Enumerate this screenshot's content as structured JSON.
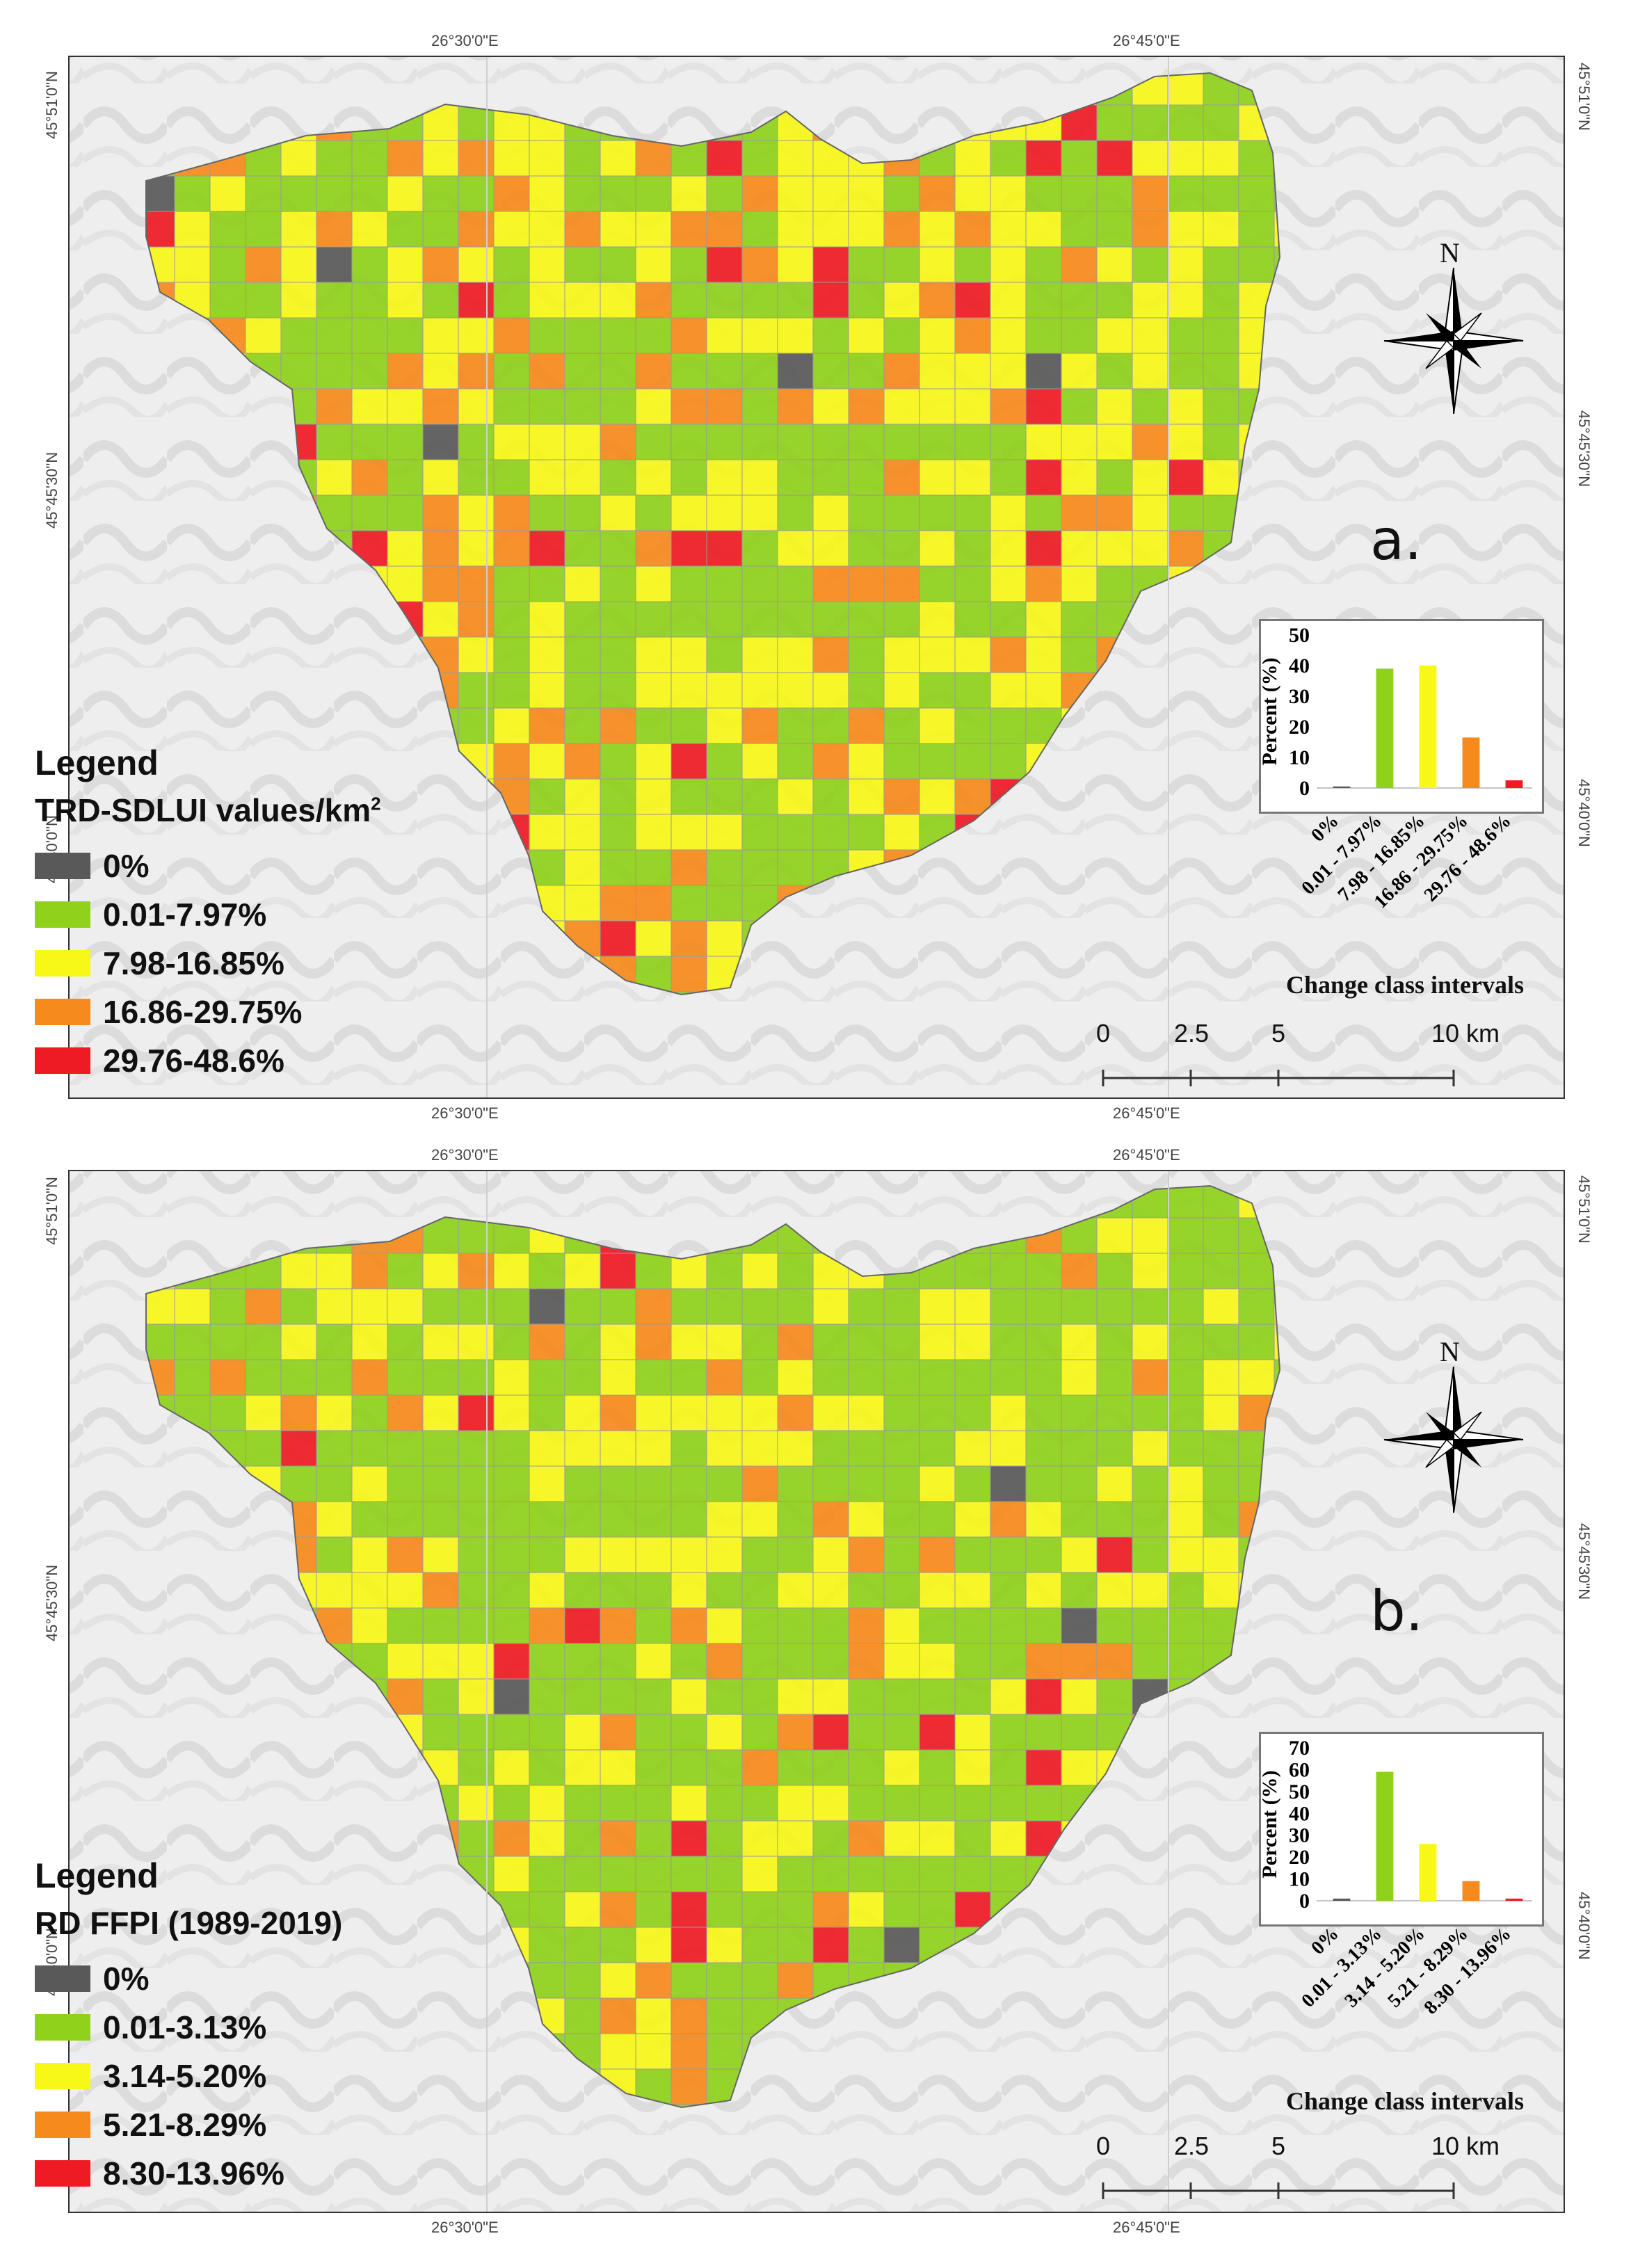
{
  "coordinates": {
    "top": [
      "26°30'0\"E",
      "26°45'0\"E"
    ],
    "bottom": [
      "26°30'0\"E",
      "26°45'0\"E"
    ],
    "left": [
      "45°51'0\"N",
      "45°45'30\"N",
      "45°40'0\"N"
    ],
    "right": [
      "45°51'0\"N",
      "45°45'30\"N",
      "45°40'0\"N"
    ]
  },
  "north_label": "N",
  "scale_bar": {
    "labels": [
      "0",
      "2.5",
      "5",
      "10 km"
    ]
  },
  "panels": [
    {
      "id": "a",
      "panel_label": "a.",
      "legend": {
        "title": "Legend",
        "subtitle": "TRD-SDLUI values/km",
        "subtitle_sup": "2",
        "items": [
          {
            "label": "0%",
            "color": "#595959"
          },
          {
            "label": "0.01-7.97%",
            "color": "#8fd11b"
          },
          {
            "label": "7.98-16.85%",
            "color": "#f7f718"
          },
          {
            "label": "16.86-29.75%",
            "color": "#f78a1c"
          },
          {
            "label": "29.76-48.6%",
            "color": "#ee1b24"
          }
        ]
      },
      "chart_data": {
        "type": "bar",
        "ylabel": "Percent (%)",
        "xlabel": "Change class intervals",
        "ylim": [
          0,
          50
        ],
        "yticks": [
          0,
          10,
          20,
          30,
          40,
          50
        ],
        "categories": [
          "0%",
          "0.01 - 7.97%",
          "7.98 - 16.85%",
          "16.86 - 29.75%",
          "29.76 - 48.6%"
        ],
        "values": [
          0.5,
          39,
          40,
          16.5,
          2.5
        ],
        "colors": [
          "#595959",
          "#8fd11b",
          "#f7f718",
          "#f78a1c",
          "#ee1b24"
        ]
      }
    },
    {
      "id": "b",
      "panel_label": "b.",
      "legend": {
        "title": "Legend",
        "subtitle": "RD FFPI (1989-2019)",
        "subtitle_sup": "",
        "items": [
          {
            "label": "0%",
            "color": "#595959"
          },
          {
            "label": "0.01-3.13%",
            "color": "#8fd11b"
          },
          {
            "label": "3.14-5.20%",
            "color": "#f7f718"
          },
          {
            "label": "5.21-8.29%",
            "color": "#f78a1c"
          },
          {
            "label": "8.30-13.96%",
            "color": "#ee1b24"
          }
        ]
      },
      "chart_data": {
        "type": "bar",
        "ylabel": "Percent (%)",
        "xlabel": "Change class intervals",
        "ylim": [
          0,
          70
        ],
        "yticks": [
          0,
          10,
          20,
          30,
          40,
          50,
          60,
          70
        ],
        "categories": [
          "0%",
          "0.01 - 3.13%",
          "3.14 - 5.20%",
          "5.21 - 8.29%",
          "8.30 - 13.96%"
        ],
        "values": [
          1,
          59,
          26,
          9,
          1
        ],
        "colors": [
          "#595959",
          "#8fd11b",
          "#f7f718",
          "#f78a1c",
          "#ee1b24"
        ]
      }
    }
  ]
}
